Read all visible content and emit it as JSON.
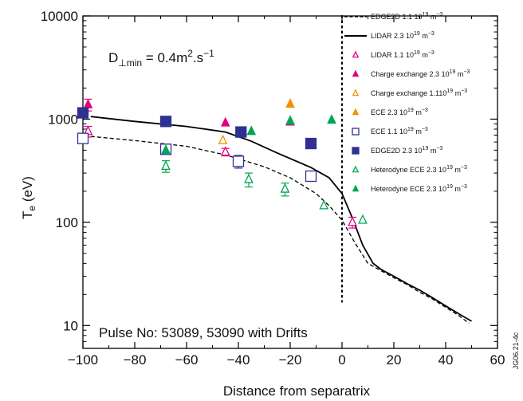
{
  "chart_data": {
    "type": "scatter",
    "x_label": "Distance from separatrix",
    "y_label": "T",
    "y_label_sub": "e",
    "y_label_unit": " (eV)",
    "y_scale": "log",
    "xlim": [
      -100,
      60
    ],
    "ylim": [
      6,
      10000
    ],
    "x_ticks": [
      -100,
      -80,
      -60,
      -40,
      -20,
      0,
      20,
      40,
      60
    ],
    "x_tick_labels": [
      "−100",
      "−80",
      "−60",
      "−40",
      "−20",
      "0",
      "20",
      "40",
      "60"
    ],
    "y_ticks": [
      10,
      100,
      1000,
      10000
    ],
    "y_tick_labels": [
      "10",
      "100",
      "1000",
      "10000"
    ],
    "separatrix_x": 0,
    "annotation_d": {
      "main": "D",
      "sub": "⊥min",
      "rest": " = 0.4m",
      "sup": "2",
      "tail": ".s",
      "sup2": "−1"
    },
    "annotation_pulse": "Pulse No: 53089, 53090 with Drifts",
    "figure_id": "JG06.21-4c",
    "legend": [
      {
        "key": "edge2d_11",
        "marker": "dashed",
        "color": "#000000",
        "label": "EDGE2D 1.1 10",
        "exp": "19",
        "unit": " m",
        "uexp": "−3"
      },
      {
        "key": "lidar_23",
        "marker": "solid",
        "color": "#000000",
        "label": "LIDAR 2.3 10",
        "exp": "19",
        "unit": " m",
        "uexp": "−3"
      },
      {
        "key": "lidar_11",
        "marker": "tri-open",
        "color": "#e6007e",
        "label": "LIDAR 1.1 10",
        "exp": "19",
        "unit": " m",
        "uexp": "−3"
      },
      {
        "key": "cx_23",
        "marker": "tri-filled",
        "color": "#e6007e",
        "label": "Charge exchange 2.3 10",
        "exp": "19",
        "unit": " m",
        "uexp": "−3"
      },
      {
        "key": "cx_11",
        "marker": "tri-open",
        "color": "#f39200",
        "label": "Charge exchange 1.110",
        "exp": "19",
        "unit": " m",
        "uexp": "−3"
      },
      {
        "key": "ece_23",
        "marker": "tri-filled",
        "color": "#f39200",
        "label": "ECE 2.3 10",
        "exp": "19",
        "unit": " m",
        "uexp": "−3"
      },
      {
        "key": "ece_11",
        "marker": "sq-open",
        "color": "#2e3192",
        "label": "ECE 1.1 10",
        "exp": "19",
        "unit": " m",
        "uexp": "−3"
      },
      {
        "key": "edge2d_23",
        "marker": "sq-filled",
        "color": "#2e3192",
        "label": "EDGE2D 2.3 10",
        "exp": "19",
        "unit": " m",
        "uexp": "−3"
      },
      {
        "key": "het_11",
        "marker": "tri-open",
        "color": "#00a651",
        "label": "Heterodyne ECE 2.3 10",
        "exp": "19",
        "unit": " m",
        "uexp": "−3"
      },
      {
        "key": "het_23",
        "marker": "tri-filled",
        "color": "#00a651",
        "label": "Heterodyne ECE 2.3 10",
        "exp": "19",
        "unit": " m",
        "uexp": "−3"
      }
    ],
    "lines": {
      "edge2d_11": [
        [
          -97,
          680
        ],
        [
          -80,
          620
        ],
        [
          -60,
          545
        ],
        [
          -45,
          450
        ],
        [
          -30,
          345
        ],
        [
          -20,
          270
        ],
        [
          -10,
          190
        ],
        [
          -5,
          145
        ],
        [
          0,
          105
        ],
        [
          5,
          63
        ],
        [
          10,
          40
        ],
        [
          15,
          34
        ],
        [
          20,
          29
        ],
        [
          25,
          25
        ],
        [
          30,
          21
        ],
        [
          35,
          18
        ],
        [
          40,
          15
        ],
        [
          45,
          12.5
        ],
        [
          49,
          10.5
        ]
      ],
      "lidar_23": [
        [
          -97,
          1060
        ],
        [
          -80,
          950
        ],
        [
          -60,
          850
        ],
        [
          -45,
          750
        ],
        [
          -35,
          610
        ],
        [
          -25,
          470
        ],
        [
          -12,
          340
        ],
        [
          -5,
          270
        ],
        [
          0,
          190
        ],
        [
          4,
          110
        ],
        [
          8,
          60
        ],
        [
          12,
          40
        ],
        [
          15,
          35
        ],
        [
          20,
          30
        ],
        [
          25,
          25.5
        ],
        [
          30,
          22
        ],
        [
          35,
          18.5
        ],
        [
          40,
          15.5
        ],
        [
          45,
          13
        ],
        [
          50,
          11
        ]
      ]
    },
    "points": {
      "lidar_11": [
        [
          -98,
          760,
          90
        ],
        [
          -45,
          480,
          40
        ],
        [
          -12,
          275,
          0
        ],
        [
          4,
          100,
          12
        ]
      ],
      "cx_23": [
        [
          -98,
          1380,
          180
        ],
        [
          -45,
          920,
          0
        ],
        [
          -20,
          940,
          0
        ]
      ],
      "cx_11": [
        [
          -46,
          620,
          0
        ]
      ],
      "ece_23": [
        [
          -20,
          1400,
          0
        ]
      ],
      "ece_11": [
        [
          -100,
          650,
          0
        ],
        [
          -68,
          510,
          0
        ],
        [
          -40,
          390,
          55
        ],
        [
          -12,
          280,
          0
        ]
      ],
      "edge2d_23": [
        [
          -100,
          1150,
          0
        ],
        [
          -68,
          950,
          0
        ],
        [
          -39,
          750,
          0
        ],
        [
          -12,
          580,
          0
        ]
      ],
      "het_11": [
        [
          -68,
          350,
          45
        ],
        [
          -36,
          260,
          40
        ],
        [
          -22,
          210,
          30
        ],
        [
          -7,
          145,
          0
        ],
        [
          8,
          105,
          0
        ]
      ],
      "het_23": [
        [
          -68,
          500,
          0
        ],
        [
          -35,
          760,
          0
        ],
        [
          -20,
          960,
          0
        ],
        [
          -4,
          980,
          0
        ]
      ]
    }
  }
}
